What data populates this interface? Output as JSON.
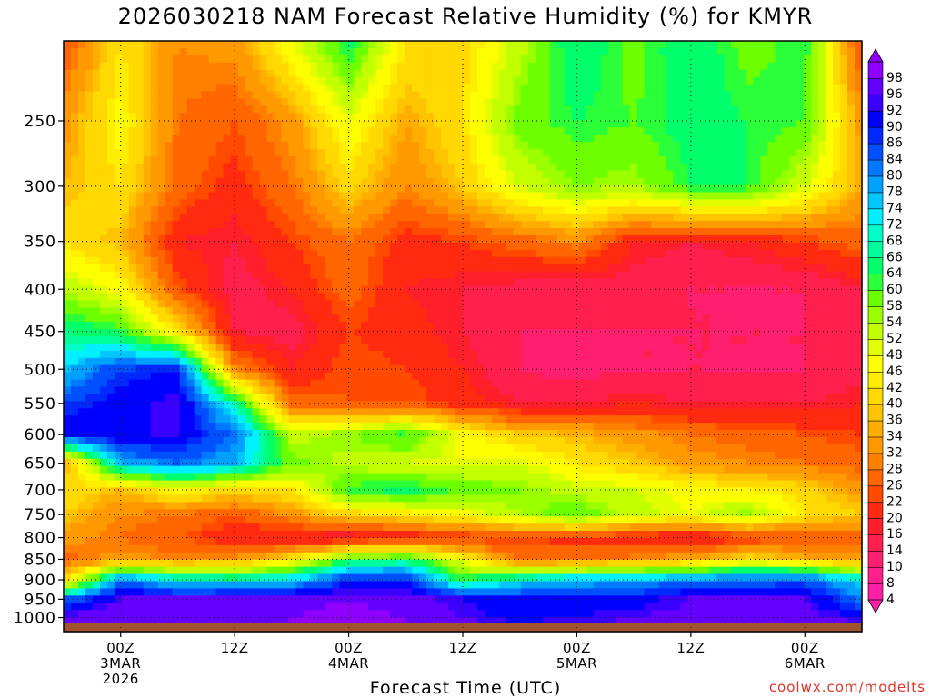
{
  "chart_data": {
    "type": "heatmap",
    "title": "2026030218 NAM Forecast Relative Humidity (%) for KMYR",
    "xlabel": "Forecast Time (UTC)",
    "ylabel": "",
    "y_scale": "pressure (log, inverted)",
    "ylim": [
      1040,
      200
    ],
    "y_ticks": [
      250,
      300,
      350,
      400,
      450,
      500,
      550,
      600,
      650,
      700,
      750,
      800,
      850,
      900,
      950,
      1000
    ],
    "x_ticks": [
      {
        "label": "00Z",
        "sub1": "3MAR",
        "sub2": "2026",
        "hour": 6
      },
      {
        "label": "12Z",
        "sub1": "",
        "sub2": "",
        "hour": 18
      },
      {
        "label": "00Z",
        "sub1": "4MAR",
        "sub2": "",
        "hour": 30
      },
      {
        "label": "12Z",
        "sub1": "",
        "sub2": "",
        "hour": 42
      },
      {
        "label": "00Z",
        "sub1": "5MAR",
        "sub2": "",
        "hour": 54
      },
      {
        "label": "12Z",
        "sub1": "",
        "sub2": "",
        "hour": 66
      },
      {
        "label": "00Z",
        "sub1": "6MAR",
        "sub2": "",
        "hour": 78
      }
    ],
    "xlim": [
      0,
      84
    ],
    "grid": true,
    "legend": "right colorbar",
    "colorbar_levels": [
      4,
      8,
      10,
      14,
      16,
      20,
      22,
      26,
      28,
      32,
      34,
      36,
      40,
      42,
      46,
      48,
      52,
      54,
      58,
      60,
      64,
      66,
      68,
      72,
      74,
      78,
      80,
      84,
      86,
      90,
      92,
      96,
      98
    ],
    "colorbar_colors": [
      "#ff1fa6",
      "#ff1f8f",
      "#ff1f6e",
      "#ff1f4c",
      "#ff1f2a",
      "#ff2a10",
      "#ff4a00",
      "#ff6600",
      "#ff7f00",
      "#ff9900",
      "#ffae00",
      "#ffc400",
      "#ffd900",
      "#ffee00",
      "#fdff00",
      "#e1ff00",
      "#c2ff00",
      "#9cff00",
      "#6dff00",
      "#2aff3a",
      "#00ff6a",
      "#00ff9a",
      "#00ffc8",
      "#00f0ff",
      "#00c8ff",
      "#00a0ff",
      "#0078ff",
      "#0050ff",
      "#0028ff",
      "#0000ff",
      "#3a00ff",
      "#6400ff",
      "#9000ff"
    ],
    "ground_color": "#a0522d",
    "humidity_grid": {
      "hours": [
        0,
        6,
        12,
        18,
        24,
        30,
        36,
        42,
        48,
        54,
        60,
        66,
        72,
        78,
        84
      ],
      "levels": [
        200,
        250,
        300,
        350,
        400,
        450,
        500,
        550,
        600,
        650,
        700,
        750,
        800,
        850,
        900,
        950,
        1000,
        1040
      ],
      "values": [
        [
          22,
          40,
          28,
          30,
          46,
          62,
          40,
          38,
          50,
          64,
          56,
          64,
          56,
          60,
          20
        ],
        [
          30,
          44,
          26,
          22,
          30,
          46,
          32,
          40,
          56,
          60,
          58,
          62,
          60,
          58,
          30
        ],
        [
          34,
          40,
          24,
          18,
          26,
          38,
          28,
          36,
          48,
          54,
          52,
          60,
          60,
          48,
          32
        ],
        [
          40,
          34,
          16,
          14,
          20,
          26,
          18,
          20,
          24,
          28,
          16,
          14,
          16,
          20,
          24
        ],
        [
          52,
          44,
          22,
          12,
          16,
          24,
          16,
          14,
          12,
          10,
          12,
          10,
          10,
          10,
          14
        ],
        [
          64,
          60,
          40,
          14,
          12,
          20,
          18,
          14,
          10,
          10,
          10,
          10,
          10,
          10,
          12
        ],
        [
          72,
          84,
          86,
          28,
          16,
          22,
          20,
          16,
          10,
          8,
          10,
          10,
          10,
          10,
          12
        ],
        [
          84,
          88,
          92,
          66,
          24,
          22,
          22,
          18,
          14,
          14,
          16,
          14,
          14,
          14,
          16
        ],
        [
          88,
          90,
          90,
          80,
          50,
          54,
          60,
          44,
          36,
          34,
          30,
          26,
          24,
          22,
          20
        ],
        [
          30,
          74,
          80,
          74,
          56,
          50,
          48,
          46,
          48,
          40,
          36,
          30,
          28,
          26,
          24
        ],
        [
          40,
          34,
          44,
          38,
          40,
          60,
          62,
          58,
          54,
          50,
          48,
          44,
          42,
          38,
          30
        ],
        [
          36,
          28,
          26,
          22,
          30,
          38,
          40,
          44,
          52,
          58,
          50,
          46,
          54,
          40,
          36
        ],
        [
          30,
          26,
          22,
          16,
          14,
          12,
          16,
          18,
          20,
          18,
          16,
          14,
          18,
          20,
          22
        ],
        [
          24,
          30,
          28,
          30,
          40,
          60,
          62,
          44,
          24,
          26,
          28,
          32,
          40,
          34,
          30
        ],
        [
          36,
          80,
          70,
          68,
          72,
          84,
          86,
          60,
          70,
          74,
          76,
          78,
          80,
          82,
          70
        ],
        [
          80,
          92,
          92,
          94,
          94,
          96,
          94,
          90,
          86,
          88,
          88,
          92,
          94,
          92,
          78
        ],
        [
          94,
          96,
          96,
          96,
          96,
          98,
          96,
          92,
          88,
          90,
          92,
          94,
          96,
          94,
          90
        ],
        [
          96,
          96,
          96,
          96,
          96,
          98,
          96,
          96,
          94,
          94,
          94,
          96,
          96,
          96,
          94
        ]
      ]
    }
  },
  "watermark": "coolwx.com/modelts"
}
